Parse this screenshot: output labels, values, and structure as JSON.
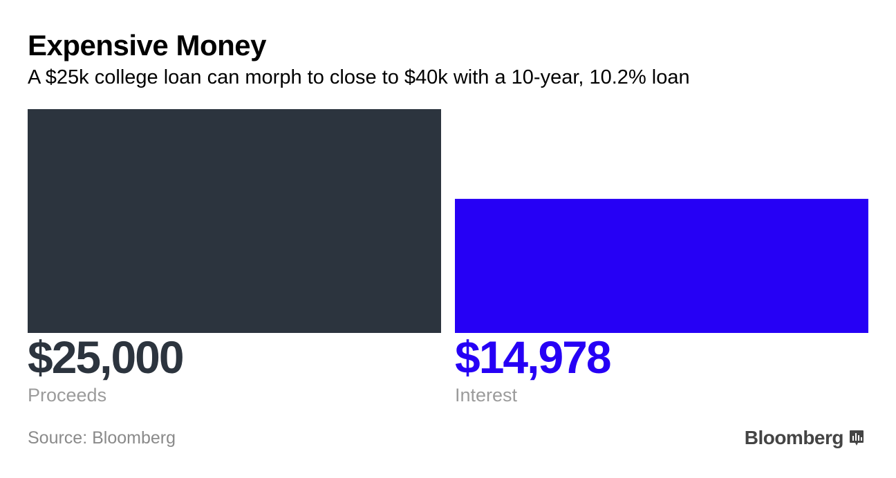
{
  "header": {
    "title": "Expensive Money",
    "subtitle": "A $25k college loan can morph to close to $40k with a 10-year, 10.2% loan"
  },
  "chart_data": {
    "type": "bar",
    "categories": [
      "Proceeds",
      "Interest"
    ],
    "values": [
      25000,
      14978
    ],
    "value_labels": [
      "$25,000",
      "$14,978"
    ],
    "colors": [
      "#2c343e",
      "#2600f5"
    ],
    "ylim": [
      0,
      25000
    ],
    "grid": false,
    "legend": "none"
  },
  "footer": {
    "source": "Source: Bloomberg",
    "brand": "Bloomberg",
    "brand_icon": "bloomberg-chart-icon"
  }
}
